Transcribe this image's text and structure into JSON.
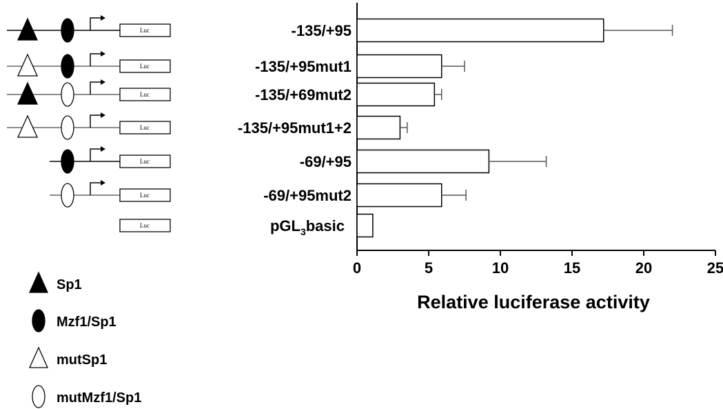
{
  "chart_data": {
    "type": "bar",
    "orientation": "horizontal",
    "xlabel": "Relative luciferase activity",
    "xlim": [
      0,
      25
    ],
    "xticks": [
      0,
      5,
      10,
      15,
      20,
      25
    ],
    "grid": false,
    "error_bars": true,
    "categories": [
      {
        "label": "-135/+95",
        "value": 17.2,
        "error": 4.8,
        "sp1": "wt",
        "mzf1": "wt",
        "start": "-135"
      },
      {
        "label": "-135/+95mut1",
        "value": 5.9,
        "error": 1.6,
        "sp1": "mut",
        "mzf1": "wt",
        "start": "-135"
      },
      {
        "label": "-135/+69mut2",
        "value": 5.4,
        "error": 0.5,
        "sp1": "wt",
        "mzf1": "mut",
        "start": "-135"
      },
      {
        "label": "-135/+95mut1+2",
        "value": 3.0,
        "error": 0.5,
        "sp1": "mut",
        "mzf1": "mut",
        "start": "-135"
      },
      {
        "label": "-69/+95",
        "value": 9.2,
        "error": 4.0,
        "sp1": "none",
        "mzf1": "wt",
        "start": "-69"
      },
      {
        "label": "-69/+95mut2",
        "value": 5.9,
        "error": 1.7,
        "sp1": "none",
        "mzf1": "mut",
        "start": "-69"
      },
      {
        "label_main": "pGL",
        "label_sub": "3",
        "label_rest": "basic",
        "value": 1.1,
        "error": 0,
        "sp1": "none",
        "mzf1": "none",
        "start": "none"
      }
    ],
    "construct_reporter_label": "Luc",
    "legend": [
      {
        "symbol": "filled-triangle",
        "label": "Sp1"
      },
      {
        "symbol": "filled-ellipse",
        "label": "Mzf1/Sp1"
      },
      {
        "symbol": "open-triangle",
        "label": "mutSp1"
      },
      {
        "symbol": "open-ellipse",
        "label": "mutMzf1/Sp1"
      }
    ],
    "legend_placement": "bottom-left"
  }
}
